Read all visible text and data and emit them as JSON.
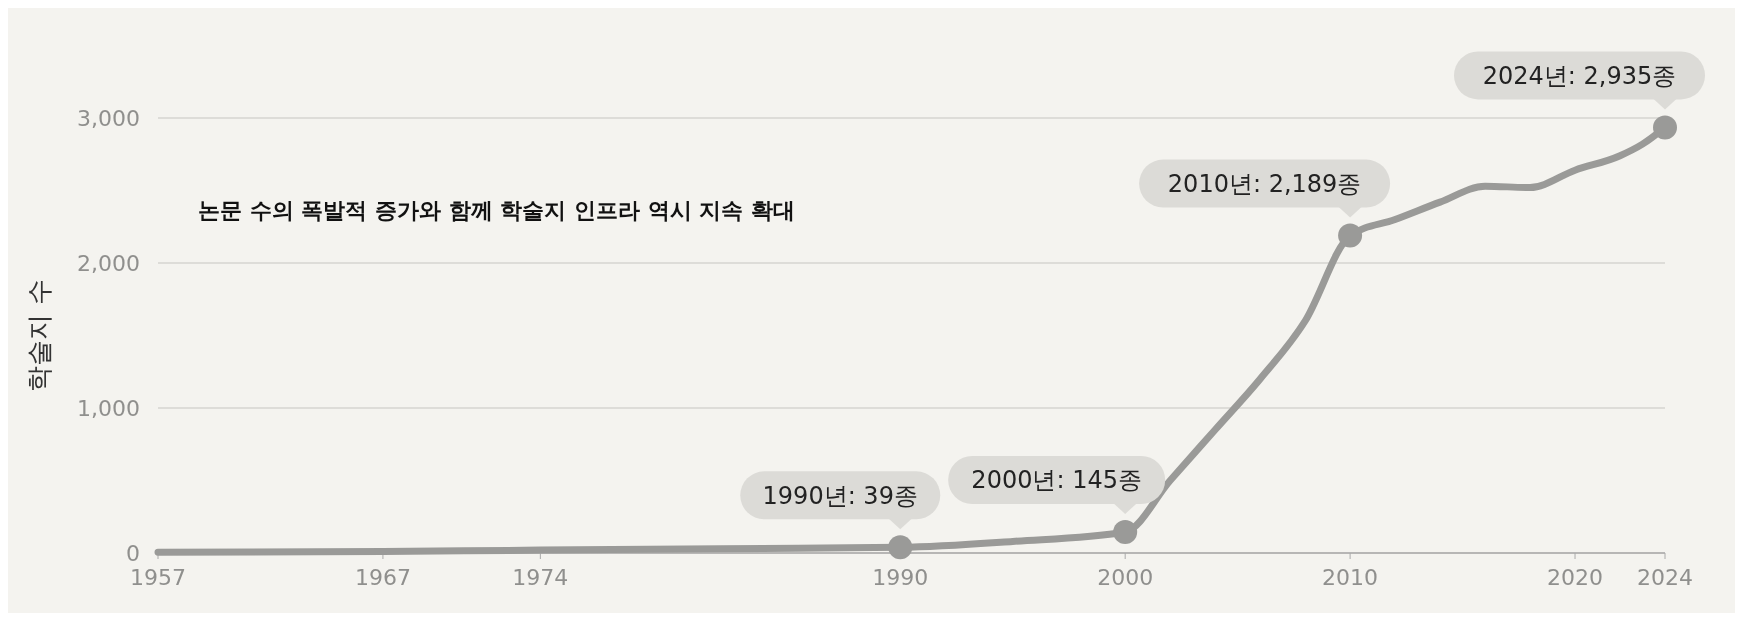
{
  "chart_data": {
    "type": "line",
    "ylabel": "학술지 수",
    "xlim": [
      1957,
      2024
    ],
    "xticks": [
      1957,
      1967,
      1974,
      1990,
      2000,
      2010,
      2020,
      2024
    ],
    "ylim": [
      0,
      3000
    ],
    "yticks": [
      {
        "value": 0,
        "label": "0"
      },
      {
        "value": 1000,
        "label": "1,000"
      },
      {
        "value": 2000,
        "label": "2,000"
      },
      {
        "value": 3000,
        "label": "3,000"
      }
    ],
    "grid": "y",
    "series": [
      {
        "color": "#9a9a98",
        "marker": "none",
        "x": [
          1957,
          1967,
          1974,
          1982,
          1990,
          1995,
          2000,
          2002,
          2004,
          2006,
          2008,
          2010,
          2012,
          2014,
          2016,
          2018,
          2020,
          2022,
          2023,
          2024
        ],
        "values": [
          5,
          10,
          20,
          30,
          39,
          80,
          145,
          500,
          850,
          1200,
          1600,
          2189,
          2300,
          2420,
          2530,
          2520,
          2640,
          2740,
          2820,
          2935
        ]
      },
      {
        "type": "scatter",
        "color": "#9a9a98",
        "marker": "circle",
        "x": [
          1990,
          2000,
          2010,
          2024
        ],
        "values": [
          39,
          145,
          2189,
          2935
        ]
      }
    ],
    "annotations": [
      "논문 수의 폭발적 증가와 함께 학술지 인프라 역시 지속 확대",
      {
        "text": "1990년: 39종",
        "x": 1990,
        "y": 39
      },
      {
        "text": "2000년: 145종",
        "x": 2000,
        "y": 145
      },
      {
        "text": "2010년: 2,189종",
        "x": 2010,
        "y": 2189
      },
      {
        "text": "2024년: 2,935종",
        "x": 2024,
        "y": 2935
      }
    ]
  }
}
